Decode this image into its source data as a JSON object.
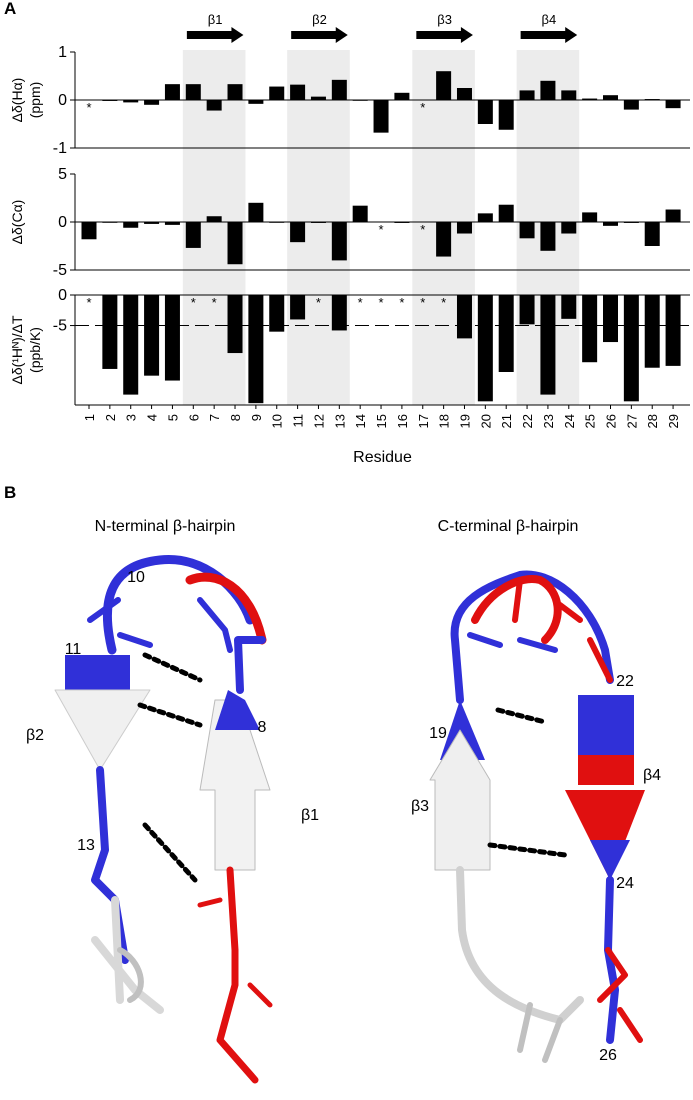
{
  "panel_labels": [
    "A",
    "B"
  ],
  "strands": [
    {
      "label": "β1",
      "range": [
        6,
        8
      ]
    },
    {
      "label": "β2",
      "range": [
        11,
        13
      ]
    },
    {
      "label": "β3",
      "range": [
        17,
        19
      ]
    },
    {
      "label": "β4",
      "range": [
        22,
        24
      ]
    }
  ],
  "chart_data": [
    {
      "type": "bar",
      "ylabel": [
        "Δδ(Hα)",
        "(ppm)"
      ],
      "color": "#000000",
      "missing_label": "*",
      "ylim": [
        -1,
        1
      ],
      "yticks": [
        -1,
        0,
        1
      ],
      "values": [
        null,
        -0.02,
        -0.05,
        -0.1,
        0.33,
        0.33,
        -0.22,
        0.33,
        -0.08,
        0.28,
        0.32,
        0.07,
        0.42,
        -0.01,
        -0.68,
        0.15,
        null,
        0.6,
        0.25,
        -0.5,
        -0.62,
        0.2,
        0.4,
        0.2,
        0.03,
        0.1,
        -0.2,
        0.02,
        -0.17
      ]
    },
    {
      "type": "bar",
      "ylabel": [
        "Δδ(Cα)",
        ""
      ],
      "color": "#000000",
      "missing_label": "*",
      "ylim": [
        -5,
        5
      ],
      "yticks": [
        -5,
        0,
        5
      ],
      "values": [
        -1.8,
        0,
        -0.6,
        -0.2,
        -0.3,
        -2.7,
        0.6,
        -4.4,
        2.0,
        0,
        -2.1,
        -0.1,
        -4.0,
        1.7,
        null,
        -0.1,
        null,
        -3.6,
        -1.2,
        0.9,
        1.8,
        -1.7,
        -3.0,
        -1.2,
        1.0,
        -0.4,
        -0.1,
        -2.5,
        1.3
      ]
    },
    {
      "type": "bar",
      "ylabel": [
        "Δδ(¹Hᴺ)/ΔT",
        "(ppb/K)"
      ],
      "color": "#000000",
      "missing_label": "*",
      "x_label": "Residue",
      "categories": [
        "1",
        "2",
        "3",
        "4",
        "5",
        "6",
        "7",
        "8",
        "9",
        "10",
        "11",
        "12",
        "13",
        "14",
        "15",
        "16",
        "17",
        "18",
        "19",
        "20",
        "21",
        "22",
        "23",
        "24",
        "25",
        "26",
        "27",
        "28",
        "29"
      ],
      "ylim": [
        -18,
        0
      ],
      "yticks": [
        0,
        -5
      ],
      "threshold": -5,
      "values": [
        null,
        -12.1,
        -16.3,
        -13.2,
        -14.0,
        null,
        null,
        -9.5,
        -17.7,
        -6.0,
        -4.0,
        null,
        -5.8,
        null,
        null,
        null,
        null,
        null,
        -7.1,
        -17.4,
        -12.6,
        -4.8,
        -16.3,
        -3.9,
        -11.0,
        -7.7,
        -17.4,
        -11.9,
        -11.6
      ]
    }
  ],
  "structures": [
    {
      "title": "N-terminal β-hairpin",
      "labels": [
        "10",
        "11",
        "8",
        "β2",
        "13",
        "β1"
      ]
    },
    {
      "title": "C-terminal β-hairpin",
      "labels": [
        "22",
        "19",
        "β4",
        "β3",
        "24",
        "26"
      ]
    }
  ]
}
